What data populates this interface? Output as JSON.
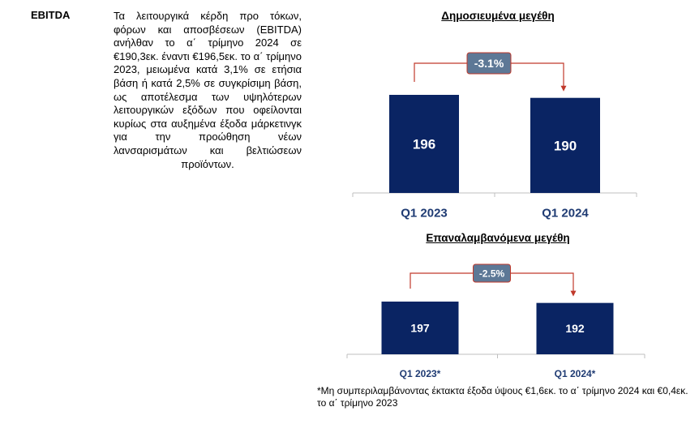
{
  "section_label": "EBITDA",
  "description": "Τα λειτουργικά κέρδη προ τόκων, φόρων και αποσβέσεων (EBITDA) ανήλθαν το α΄ τρίμηνο 2024 σε €190,3εκ. έναντι €196,5εκ. το α΄ τρίμηνο 2023, μειωμένα κατά 3,1% σε ετήσια βάση ή κατά 2,5% σε συγκρίσιμη βάση, ως αποτέλεσμα των υψηλότερων λειτουργικών εξόδων που οφείλονται κυρίως στα αυξημένα έξοδα μάρκετινγκ για την προώθηση νέων λανσαρισμάτων και βελτιώσεων προϊόντων.",
  "footnote": "*Μη συμπεριλαμβάνοντας έκτακτα έξοδα ύψους €1,6εκ. το α΄ τρίμηνο 2024 και €0,4εκ. το α΄ τρίμηνο 2023",
  "colors": {
    "bar": "#0a2463",
    "bar_label": "#ffffff",
    "axis_label": "#1f3b73",
    "arrow": "#c0392b",
    "badge_fill": "#5d7896",
    "badge_text": "#ffffff",
    "baseline": "#bfbfbf"
  },
  "chart_data": [
    {
      "type": "bar",
      "title": "Δημοσιευμένα μεγέθη",
      "categories": [
        "Q1 2023",
        "Q1 2024"
      ],
      "values": [
        196,
        190
      ],
      "data_labels": [
        "196",
        "190"
      ],
      "change_label": "-3.1%",
      "ylim": [
        0,
        200
      ],
      "grid": false,
      "legend": "none"
    },
    {
      "type": "bar",
      "title": "Επαναλαμβανόμενα μεγέθη",
      "categories": [
        "Q1 2023*",
        "Q1 2024*"
      ],
      "values": [
        197,
        192
      ],
      "data_labels": [
        "197",
        "192"
      ],
      "change_label": "-2.5%",
      "ylim": [
        0,
        200
      ],
      "grid": false,
      "legend": "none"
    }
  ]
}
